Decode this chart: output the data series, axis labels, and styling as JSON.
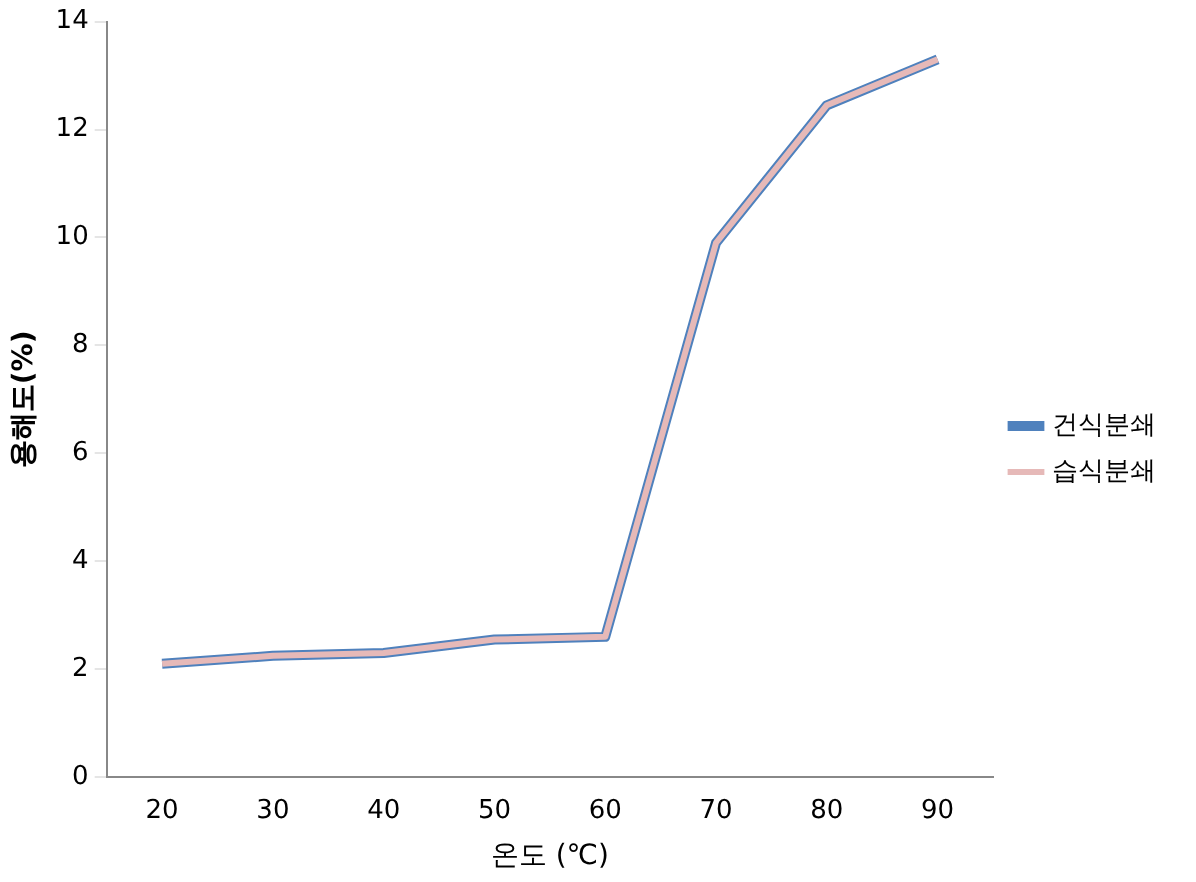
{
  "chart_data": {
    "type": "line",
    "xlabel": "온도 (℃)",
    "ylabel": "용해도(%)",
    "categories": [
      "20",
      "30",
      "40",
      "50",
      "60",
      "70",
      "80",
      "90"
    ],
    "series": [
      {
        "name": "건식분쇄",
        "color": "#4f81bd",
        "values": [
          2.1,
          2.25,
          2.3,
          2.55,
          2.6,
          9.9,
          12.45,
          13.3
        ]
      },
      {
        "name": "습식분쇄",
        "color": "#e6b9b8",
        "values": [
          2.1,
          2.25,
          2.3,
          2.55,
          2.6,
          9.9,
          12.45,
          13.3
        ]
      }
    ],
    "ylim": [
      0,
      14
    ],
    "yticks": [
      0,
      2,
      4,
      6,
      8,
      10,
      12,
      14
    ],
    "grid": false,
    "legend": "right",
    "marker": "none",
    "line_style": "solid"
  }
}
